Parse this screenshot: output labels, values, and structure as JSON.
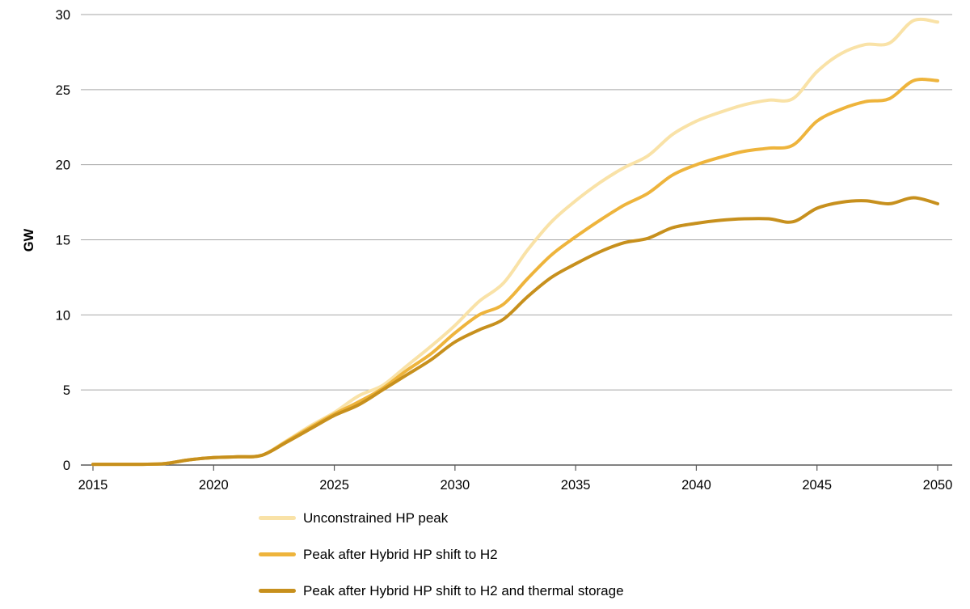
{
  "chart_data": {
    "type": "line",
    "title": "",
    "xlabel": "",
    "ylabel": "GW",
    "xlim": [
      2015,
      2050
    ],
    "ylim": [
      0,
      30
    ],
    "xticks": [
      2015,
      2020,
      2025,
      2030,
      2035,
      2040,
      2045,
      2050
    ],
    "yticks": [
      0,
      5,
      10,
      15,
      20,
      25,
      30
    ],
    "grid": "horizontal",
    "legend_position": "bottom-left",
    "gridline_color": "#a6a6a6",
    "axis_color": "#595959",
    "x": [
      2015,
      2016,
      2017,
      2018,
      2019,
      2020,
      2021,
      2022,
      2023,
      2024,
      2025,
      2026,
      2027,
      2028,
      2029,
      2030,
      2031,
      2032,
      2033,
      2034,
      2035,
      2036,
      2037,
      2038,
      2039,
      2040,
      2041,
      2042,
      2043,
      2044,
      2045,
      2046,
      2047,
      2048,
      2049,
      2050
    ],
    "series": [
      {
        "name": "Unconstrained HP peak",
        "color": "#f9e2a7",
        "values": [
          0.05,
          0.05,
          0.05,
          0.1,
          0.35,
          0.5,
          0.55,
          0.65,
          1.6,
          2.6,
          3.5,
          4.6,
          5.3,
          6.6,
          7.9,
          9.3,
          10.9,
          12.1,
          14.3,
          16.2,
          17.6,
          18.8,
          19.8,
          20.6,
          22.0,
          22.9,
          23.5,
          24.0,
          24.3,
          24.4,
          26.2,
          27.4,
          28.0,
          28.1,
          29.6,
          29.5
        ]
      },
      {
        "name": "Peak after Hybrid HP shift to H2",
        "color": "#eeb43c",
        "values": [
          0.05,
          0.05,
          0.05,
          0.1,
          0.35,
          0.5,
          0.55,
          0.65,
          1.55,
          2.5,
          3.4,
          4.2,
          5.1,
          6.3,
          7.4,
          8.8,
          10.0,
          10.7,
          12.4,
          14.0,
          15.2,
          16.3,
          17.3,
          18.1,
          19.3,
          20.0,
          20.5,
          20.9,
          21.1,
          21.3,
          22.9,
          23.7,
          24.2,
          24.4,
          25.6,
          25.6
        ]
      },
      {
        "name": "Peak after Hybrid HP shift to H2 and thermal storage",
        "color": "#c7901d",
        "values": [
          0.05,
          0.05,
          0.05,
          0.1,
          0.35,
          0.5,
          0.55,
          0.65,
          1.5,
          2.4,
          3.3,
          4.0,
          5.0,
          6.0,
          7.0,
          8.2,
          9.0,
          9.7,
          11.2,
          12.5,
          13.4,
          14.2,
          14.8,
          15.1,
          15.8,
          16.1,
          16.3,
          16.4,
          16.4,
          16.2,
          17.1,
          17.5,
          17.6,
          17.4,
          17.8,
          17.4
        ]
      }
    ]
  }
}
